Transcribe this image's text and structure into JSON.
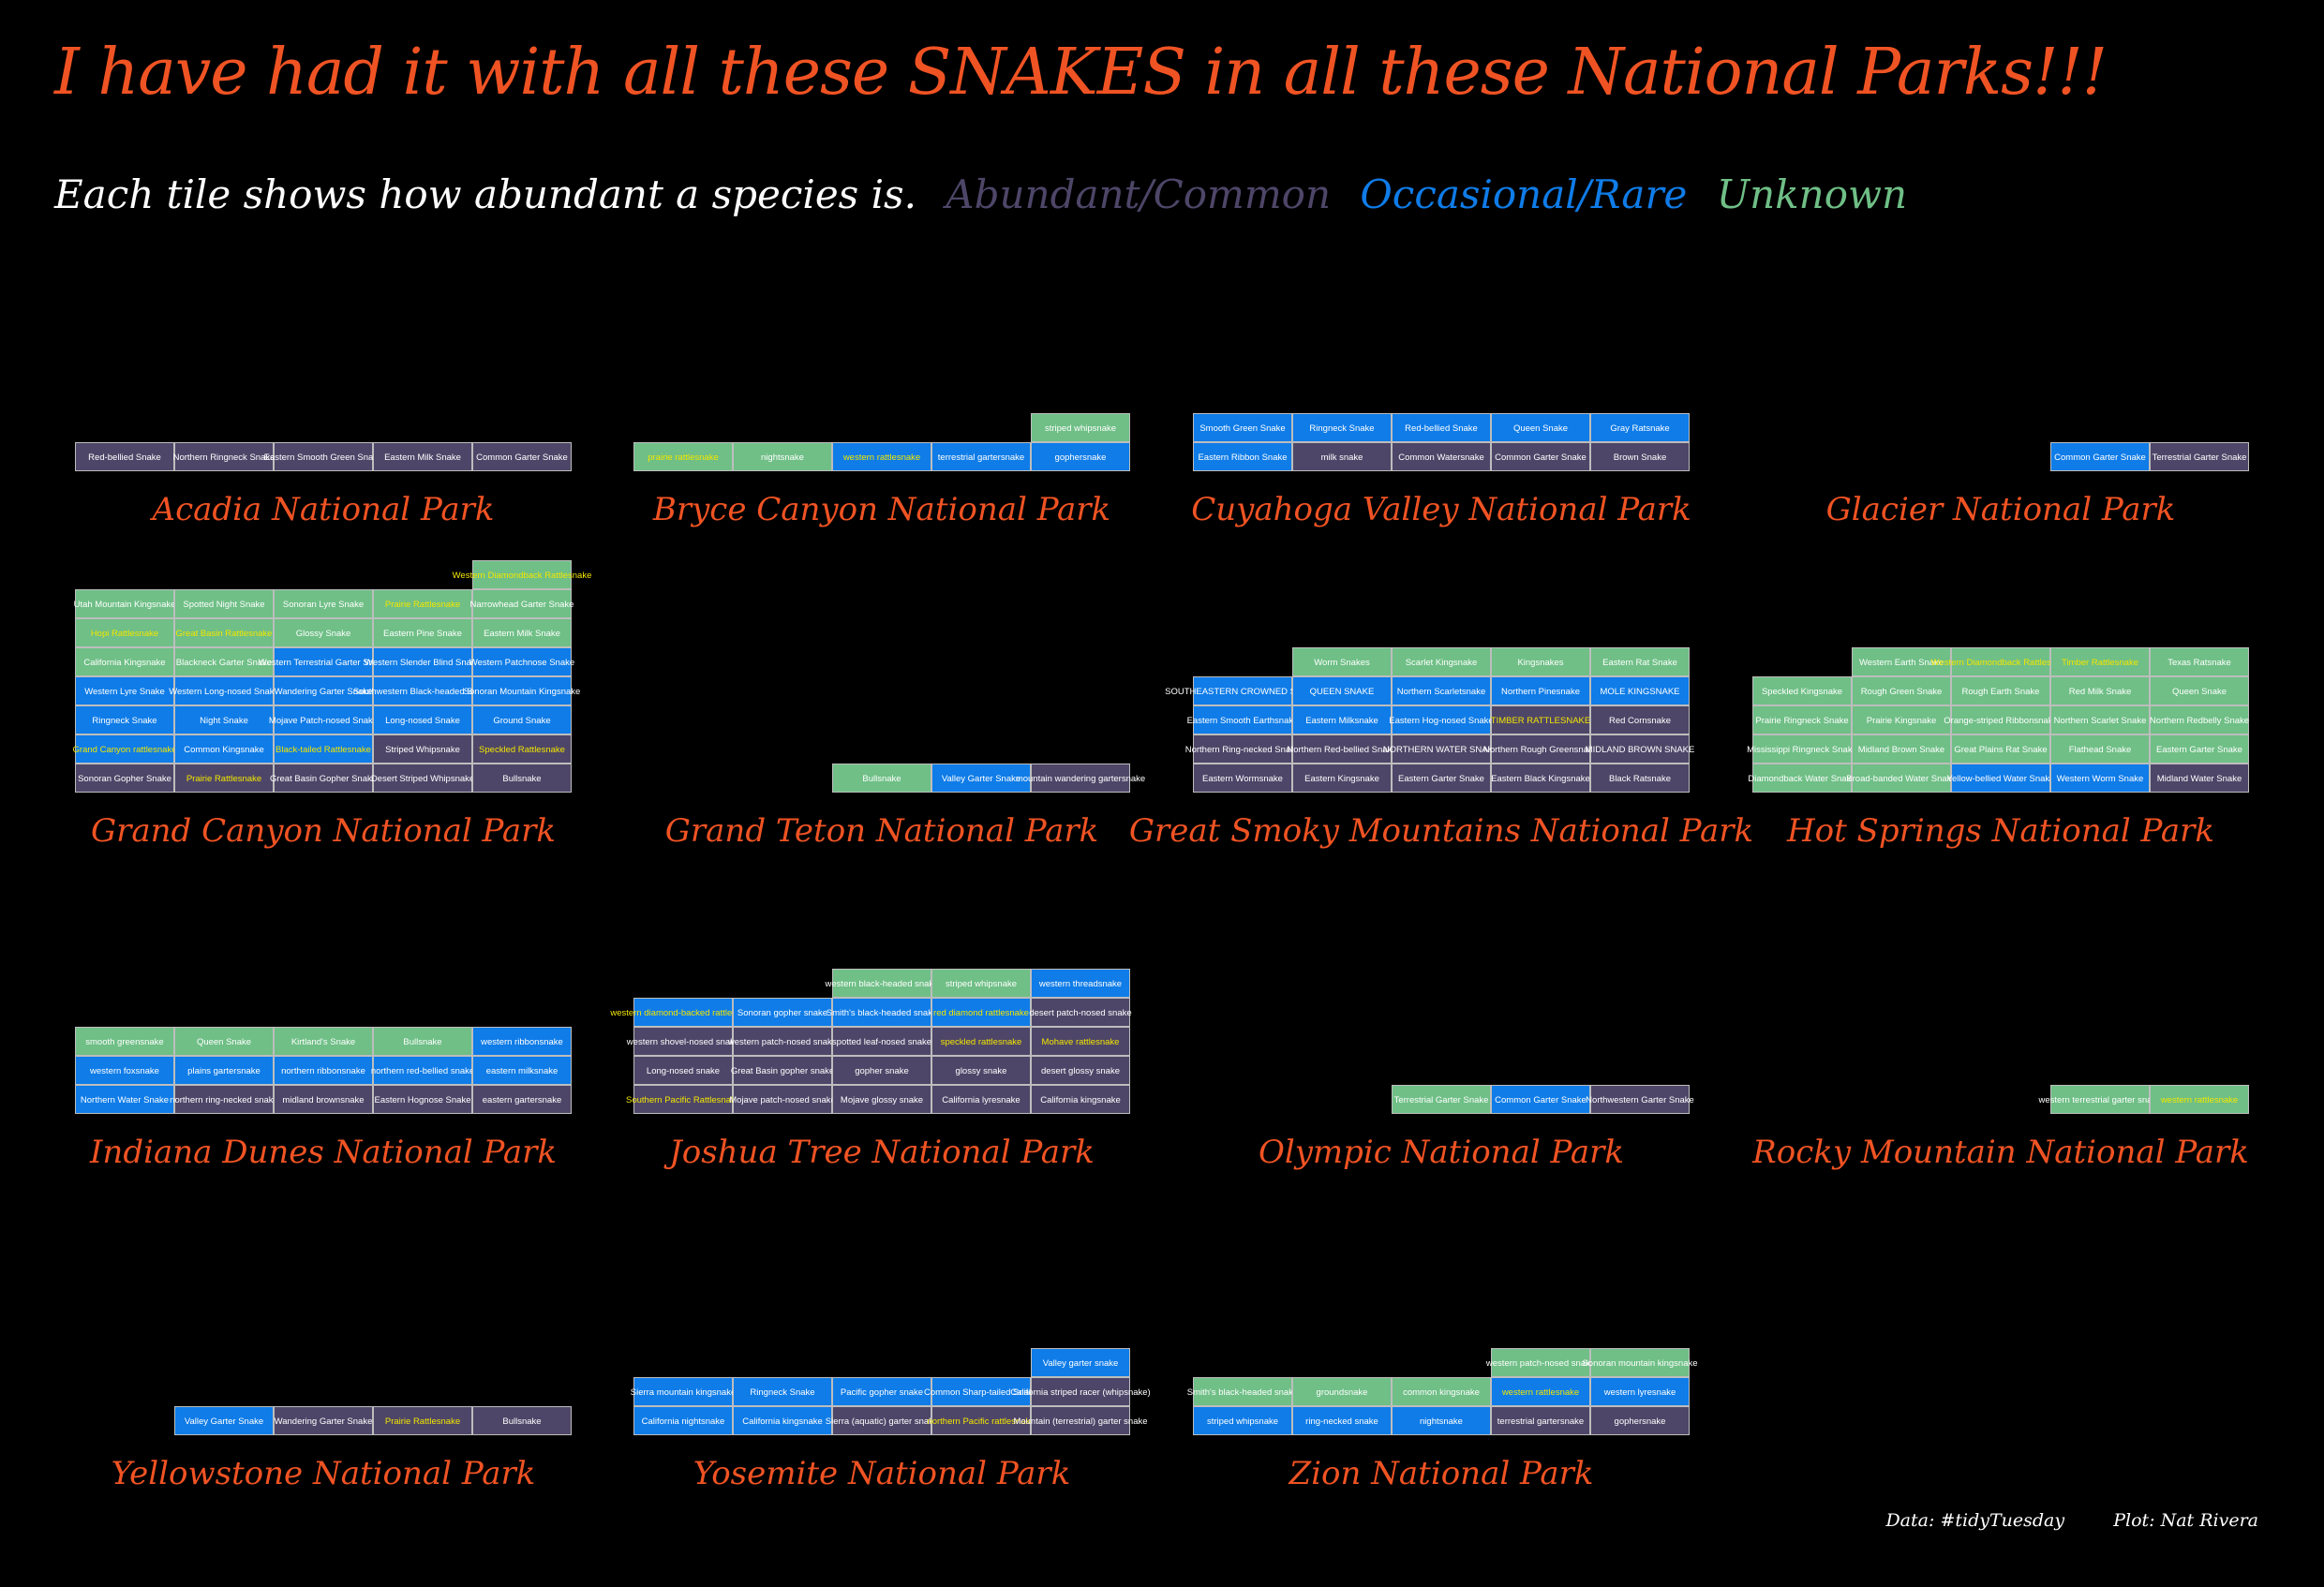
{
  "title": "I have had it with all these SNAKES in all these National Parks!!!",
  "subtitle": "Each tile shows how abundant a species is.",
  "caption": {
    "data_label": "Data:",
    "data_value": "#tidyTuesday",
    "plot_label": "Plot:",
    "plot_value": "Nat Rivera"
  },
  "colors": {
    "background": "#000000",
    "title": "#f05323",
    "park_label": "#f05323",
    "tile_border": "#bdbdbd",
    "tile_text": "#ffffff",
    "highlight_text": "#f2e600",
    "categories": {
      "Abundant/Common": "#4e4668",
      "Occasional/Rare": "#0f7ce8",
      "Unknown": "#6fbf86"
    }
  },
  "legend": [
    {
      "label": "Abundant/Common",
      "color": "#4e4668"
    },
    {
      "label": "Occasional/Rare",
      "color": "#0f7ce8"
    },
    {
      "label": "Unknown",
      "color": "#6fbf86"
    }
  ],
  "chart_data": {
    "type": "table",
    "encoding": "waffle tiles; each tile is one snake species, colored by abundance; tiles filled from the bottom-right, up to 5 per row; venomous species printed in yellow",
    "codes": {
      "A": "Abundant/Common",
      "O": "Occasional/Rare",
      "U": "Unknown"
    },
    "parks": [
      {
        "name": "Acadia National Park",
        "rows": [
          [
            [
              "Red-bellied Snake",
              "A"
            ],
            [
              "Northern Ringneck Snake",
              "A"
            ],
            [
              "Eastern Smooth Green Snake",
              "A"
            ],
            [
              "Eastern Milk Snake",
              "A"
            ],
            [
              "Common Garter Snake",
              "A"
            ]
          ]
        ]
      },
      {
        "name": "Bryce Canyon National Park",
        "rows": [
          [
            [
              "striped whipsnake",
              "U"
            ]
          ],
          [
            [
              "prairie rattlesnake",
              "U",
              1
            ],
            [
              "nightsnake",
              "U"
            ],
            [
              "western rattlesnake",
              "O",
              1
            ],
            [
              "terrestrial gartersnake",
              "O"
            ],
            [
              "gophersnake",
              "O"
            ]
          ]
        ]
      },
      {
        "name": "Cuyahoga Valley National Park",
        "rows": [
          [
            [
              "Smooth Green Snake",
              "O"
            ],
            [
              "Ringneck Snake",
              "O"
            ],
            [
              "Red-bellied Snake",
              "O"
            ],
            [
              "Queen Snake",
              "O"
            ],
            [
              "Gray Ratsnake",
              "O"
            ]
          ],
          [
            [
              "Eastern Ribbon Snake",
              "O"
            ],
            [
              "milk snake",
              "A"
            ],
            [
              "Common Watersnake",
              "A"
            ],
            [
              "Common Garter Snake",
              "A"
            ],
            [
              "Brown Snake",
              "A"
            ]
          ]
        ]
      },
      {
        "name": "Glacier National Park",
        "rows": [
          [
            [
              "Common Garter Snake",
              "O"
            ],
            [
              "Terrestrial Garter Snake",
              "A"
            ]
          ]
        ]
      },
      {
        "name": "Grand Canyon National Park",
        "rows": [
          [
            [
              "Western Diamondback Rattlesnake",
              "U",
              1
            ]
          ],
          [
            [
              "Utah Mountain Kingsnake",
              "U"
            ],
            [
              "Spotted Night Snake",
              "U"
            ],
            [
              "Sonoran Lyre Snake",
              "U"
            ],
            [
              "Prairie Rattlesnake",
              "U",
              1
            ],
            [
              "Narrowhead Garter Snake",
              "U"
            ]
          ],
          [
            [
              "Hopi Rattlesnake",
              "U",
              1
            ],
            [
              "Great Basin Rattlesnake",
              "U",
              1
            ],
            [
              "Glossy Snake",
              "U"
            ],
            [
              "Eastern Pine Snake",
              "U"
            ],
            [
              "Eastern Milk Snake",
              "U"
            ]
          ],
          [
            [
              "California Kingsnake",
              "U"
            ],
            [
              "Blackneck Garter Snake",
              "U"
            ],
            [
              "Western Terrestrial Garter Snake",
              "O"
            ],
            [
              "Western Slender Blind Snake",
              "O"
            ],
            [
              "Western Patchnose Snake",
              "O"
            ]
          ],
          [
            [
              "Western Lyre Snake",
              "O"
            ],
            [
              "Western Long-nosed Snake",
              "O"
            ],
            [
              "Wandering Garter Snake",
              "O"
            ],
            [
              "Southwestern Black-headed Snake",
              "O"
            ],
            [
              "Sonoran Mountain Kingsnake",
              "O"
            ]
          ],
          [
            [
              "Ringneck Snake",
              "O"
            ],
            [
              "Night Snake",
              "O"
            ],
            [
              "Mojave Patch-nosed Snake",
              "O"
            ],
            [
              "Long-nosed Snake",
              "O"
            ],
            [
              "Ground Snake",
              "O"
            ]
          ],
          [
            [
              "Grand Canyon rattlesnake",
              "O",
              1
            ],
            [
              "Common Kingsnake",
              "O"
            ],
            [
              "Black-tailed Rattlesnake",
              "O",
              1
            ],
            [
              "Striped Whipsnake",
              "A"
            ],
            [
              "Speckled Rattlesnake",
              "A",
              1
            ]
          ],
          [
            [
              "Sonoran Gopher Snake",
              "A"
            ],
            [
              "Prairie Rattlesnake",
              "A",
              1
            ],
            [
              "Great Basin Gopher Snake",
              "A"
            ],
            [
              "Desert Striped Whipsnake",
              "A"
            ],
            [
              "Bullsnake",
              "A"
            ]
          ]
        ]
      },
      {
        "name": "Grand Teton National Park",
        "rows": [
          [
            [
              "Bullsnake",
              "U"
            ],
            [
              "Valley Garter Snake",
              "O"
            ],
            [
              "mountain wandering gartersnake",
              "A"
            ]
          ]
        ]
      },
      {
        "name": "Great Smoky Mountains National Park",
        "rows": [
          [
            [
              "Worm Snakes",
              "U"
            ],
            [
              "Scarlet Kingsnake",
              "U"
            ],
            [
              "Kingsnakes",
              "U"
            ],
            [
              "Eastern Rat Snake",
              "U"
            ]
          ],
          [
            [
              "SOUTHEASTERN CROWNED SNAKE",
              "O"
            ],
            [
              "QUEEN SNAKE",
              "O"
            ],
            [
              "Northern Scarletsnake",
              "O"
            ],
            [
              "Northern Pinesnake",
              "O"
            ],
            [
              "MOLE KINGSNAKE",
              "O"
            ]
          ],
          [
            [
              "Eastern Smooth Earthsnake",
              "O"
            ],
            [
              "Eastern Milksnake",
              "O"
            ],
            [
              "Eastern Hog-nosed Snake",
              "O"
            ],
            [
              "TIMBER RATTLESNAKE",
              "A",
              1
            ],
            [
              "Red Cornsnake",
              "A"
            ]
          ],
          [
            [
              "Northern Ring-necked Snake",
              "A"
            ],
            [
              "Northern Red-bellied Snake",
              "A"
            ],
            [
              "NORTHERN WATER SNAKE",
              "A"
            ],
            [
              "Northern Rough Greensnake",
              "A"
            ],
            [
              "MIDLAND BROWN SNAKE",
              "A"
            ]
          ],
          [
            [
              "Eastern Wormsnake",
              "A"
            ],
            [
              "Eastern Kingsnake",
              "A"
            ],
            [
              "Eastern Garter Snake",
              "A"
            ],
            [
              "Eastern Black Kingsnake",
              "A"
            ],
            [
              "Black Ratsnake",
              "A"
            ]
          ]
        ]
      },
      {
        "name": "Hot Springs National Park",
        "rows": [
          [
            [
              "Western Earth Snake",
              "U"
            ],
            [
              "Western Diamondback Rattlesnake",
              "U",
              1
            ],
            [
              "Timber Rattlesnake",
              "U",
              1
            ],
            [
              "Texas Ratsnake",
              "U"
            ]
          ],
          [
            [
              "Speckled Kingsnake",
              "U"
            ],
            [
              "Rough Green Snake",
              "U"
            ],
            [
              "Rough Earth Snake",
              "U"
            ],
            [
              "Red Milk Snake",
              "U"
            ],
            [
              "Queen Snake",
              "U"
            ]
          ],
          [
            [
              "Prairie Ringneck Snake",
              "U"
            ],
            [
              "Prairie Kingsnake",
              "U"
            ],
            [
              "Orange-striped Ribbonsnake",
              "U"
            ],
            [
              "Northern Scarlet Snake",
              "U"
            ],
            [
              "Northern Redbelly Snake",
              "U"
            ]
          ],
          [
            [
              "Mississippi Ringneck Snake",
              "U"
            ],
            [
              "Midland Brown Snake",
              "U"
            ],
            [
              "Great Plains Rat Snake",
              "U"
            ],
            [
              "Flathead Snake",
              "U"
            ],
            [
              "Eastern Garter Snake",
              "U"
            ]
          ],
          [
            [
              "Diamondback Water Snake",
              "U"
            ],
            [
              "Broad-banded Water Snake",
              "U"
            ],
            [
              "Yellow-bellied Water Snake",
              "O"
            ],
            [
              "Western Worm Snake",
              "O"
            ],
            [
              "Midland Water Snake",
              "A"
            ]
          ]
        ]
      },
      {
        "name": "Indiana Dunes National Park",
        "rows": [
          [
            [
              "smooth greensnake",
              "U"
            ],
            [
              "Queen Snake",
              "U"
            ],
            [
              "Kirtland's Snake",
              "U"
            ],
            [
              "Bullsnake",
              "U"
            ],
            [
              "western ribbonsnake",
              "O"
            ]
          ],
          [
            [
              "western foxsnake",
              "O"
            ],
            [
              "plains gartersnake",
              "O"
            ],
            [
              "northern ribbonsnake",
              "O"
            ],
            [
              "northern red-bellied snake",
              "O"
            ],
            [
              "eastern milksnake",
              "O"
            ]
          ],
          [
            [
              "Northern Water Snake",
              "O"
            ],
            [
              "northern ring-necked snake",
              "A"
            ],
            [
              "midland brownsnake",
              "A"
            ],
            [
              "Eastern Hognose Snake",
              "A"
            ],
            [
              "eastern gartersnake",
              "A"
            ]
          ]
        ]
      },
      {
        "name": "Joshua Tree National Park",
        "rows": [
          [
            [
              "western black-headed snake",
              "U"
            ],
            [
              "striped whipsnake",
              "U"
            ],
            [
              "western threadsnake",
              "O"
            ]
          ],
          [
            [
              "western diamond-backed rattlesnake",
              "O",
              1
            ],
            [
              "Sonoran gopher snake",
              "O"
            ],
            [
              "Smith's black-headed snake",
              "O"
            ],
            [
              "red diamond rattlesnake",
              "O",
              1
            ],
            [
              "desert patch-nosed snake",
              "A"
            ]
          ],
          [
            [
              "western shovel-nosed snake",
              "A"
            ],
            [
              "western patch-nosed snake",
              "A"
            ],
            [
              "spotted leaf-nosed snake",
              "A"
            ],
            [
              "speckled rattlesnake",
              "A",
              1
            ],
            [
              "Mohave rattlesnake",
              "A",
              1
            ]
          ],
          [
            [
              "Long-nosed snake",
              "A"
            ],
            [
              "Great Basin gopher snake",
              "A"
            ],
            [
              "gopher snake",
              "A"
            ],
            [
              "glossy snake",
              "A"
            ],
            [
              "desert glossy snake",
              "A"
            ]
          ],
          [
            [
              "Southern Pacific Rattlesnake",
              "A",
              1
            ],
            [
              "Mojave patch-nosed snake",
              "A"
            ],
            [
              "Mojave glossy snake",
              "A"
            ],
            [
              "California lyresnake",
              "A"
            ],
            [
              "California kingsnake",
              "A"
            ]
          ]
        ]
      },
      {
        "name": "Olympic National Park",
        "rows": [
          [
            [
              "Terrestrial Garter Snake",
              "U"
            ],
            [
              "Common Garter Snake",
              "O"
            ],
            [
              "Northwestern Garter Snake",
              "A"
            ]
          ]
        ]
      },
      {
        "name": "Rocky Mountain National Park",
        "rows": [
          [
            [
              "western terrestrial garter snake",
              "U"
            ],
            [
              "western rattlesnake",
              "U",
              1
            ]
          ]
        ]
      },
      {
        "name": "Yellowstone National Park",
        "rows": [
          [
            [
              "Valley Garter Snake",
              "O"
            ],
            [
              "Wandering Garter Snake",
              "A"
            ],
            [
              "Prairie Rattlesnake",
              "A",
              1
            ],
            [
              "Bullsnake",
              "A"
            ]
          ]
        ]
      },
      {
        "name": "Yosemite National Park",
        "rows": [
          [
            [
              "Valley garter snake",
              "O"
            ]
          ],
          [
            [
              "Sierra mountain kingsnake",
              "O"
            ],
            [
              "Ringneck Snake",
              "O"
            ],
            [
              "Pacific gopher snake",
              "O"
            ],
            [
              "Common Sharp-tailed Snake",
              "O"
            ],
            [
              "California striped racer (whipsnake)",
              "A"
            ]
          ],
          [
            [
              "California nightsnake",
              "O"
            ],
            [
              "California kingsnake",
              "O"
            ],
            [
              "Sierra (aquatic) garter snake",
              "A"
            ],
            [
              "northern Pacific rattlesnake",
              "A",
              1
            ],
            [
              "Mountain (terrestrial) garter snake",
              "A"
            ]
          ]
        ]
      },
      {
        "name": "Zion National Park",
        "rows": [
          [
            [
              "western patch-nosed snake",
              "U"
            ],
            [
              "Sonoran mountain kingsnake",
              "U"
            ]
          ],
          [
            [
              "Smith's black-headed snake",
              "U"
            ],
            [
              "groundsnake",
              "U"
            ],
            [
              "common kingsnake",
              "U"
            ],
            [
              "western rattlesnake",
              "O",
              1
            ],
            [
              "western lyresnake",
              "O"
            ]
          ],
          [
            [
              "striped whipsnake",
              "O"
            ],
            [
              "ring-necked snake",
              "O"
            ],
            [
              "nightsnake",
              "O"
            ],
            [
              "terrestrial gartersnake",
              "A"
            ],
            [
              "gophersnake",
              "A"
            ]
          ]
        ]
      }
    ]
  }
}
